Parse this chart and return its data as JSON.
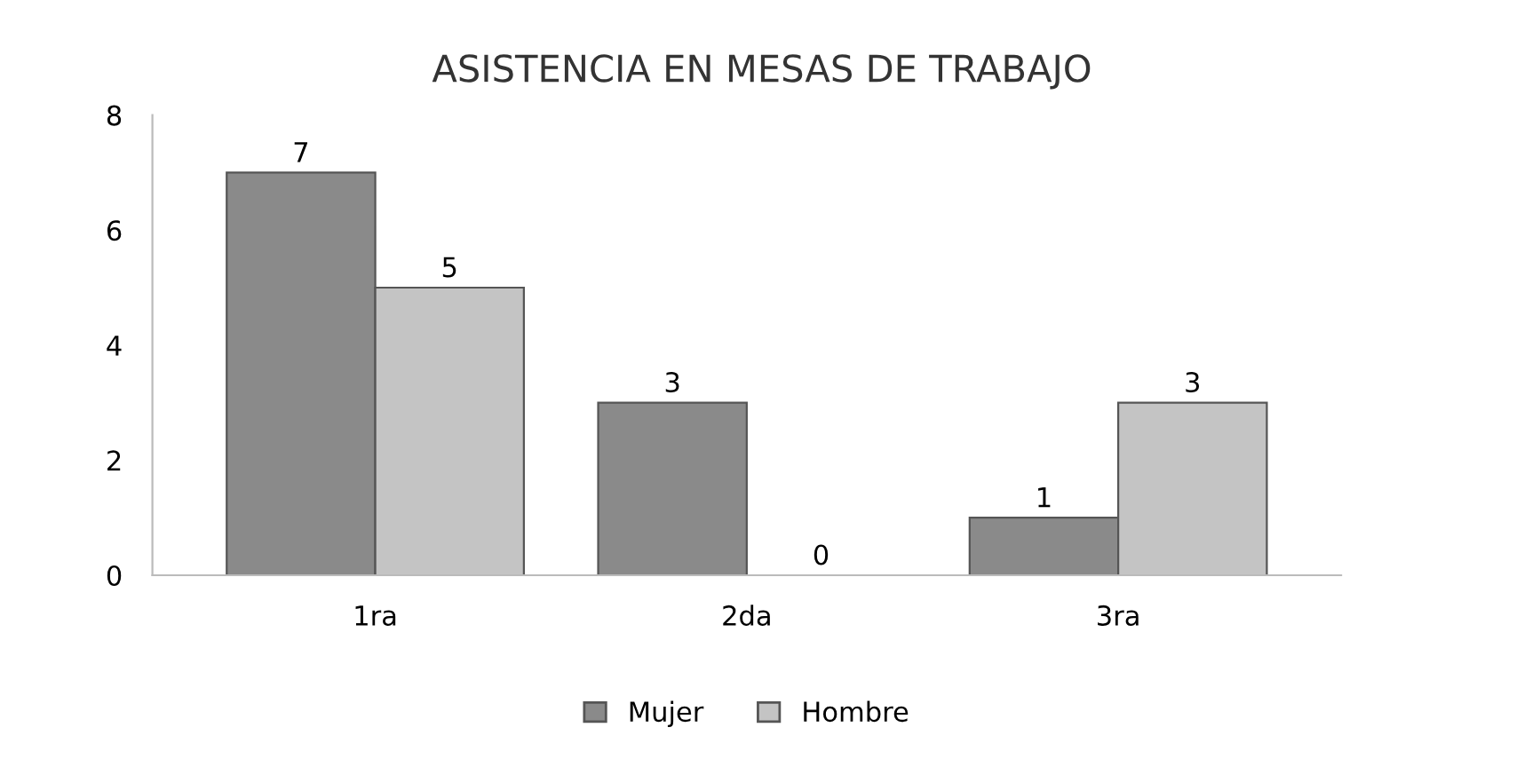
{
  "chart_data": {
    "type": "bar",
    "title": "ASISTENCIA EN MESAS DE TRABAJO",
    "categories": [
      "1ra",
      "2da",
      "3ra"
    ],
    "series": [
      {
        "name": "Mujer",
        "color": "#8a8a8a",
        "values": [
          7,
          3,
          1
        ]
      },
      {
        "name": "Hombre",
        "color": "#c4c4c4",
        "values": [
          5,
          0,
          3
        ]
      }
    ],
    "ylim": [
      0,
      8
    ],
    "yticks": [
      0,
      2,
      4,
      6,
      8
    ],
    "grid": false,
    "legend": "bottom",
    "data_labels": true
  }
}
